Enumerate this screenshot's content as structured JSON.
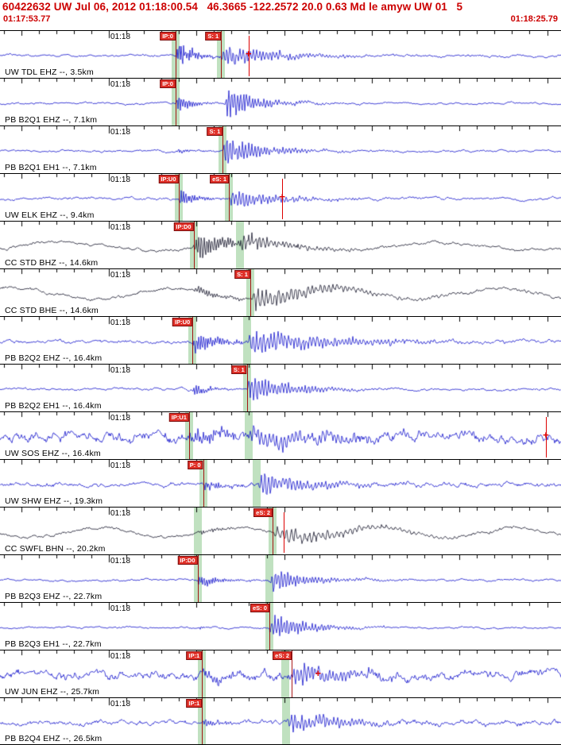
{
  "header": {
    "event_line": "60422632 UW Jul 06, 2012 01:18:00.54   46.3665 -122.2572 20.0 0.63 Md le amyw UW 01   5",
    "window_start": "01:17:53.77",
    "window_end": "01:18:25.79",
    "text_color": "#cc0000"
  },
  "axis": {
    "minute_label_x": 137,
    "tick_spacing": 22.06
  },
  "colors": {
    "trace_blue": "#1212cc",
    "trace_dark": "#14142a",
    "pick_flag_bg": "#e03028",
    "pick_band": "rgba(150,205,150,0.6)",
    "pick_line": "#a00000",
    "marker_red": "#dd0000",
    "tick_black": "#000000"
  },
  "traces": [
    {
      "station_label": "UW TDL EHZ --, 3.5km",
      "time_label": "01:18",
      "dark": false,
      "picks": [
        {
          "label": "IP:0",
          "frac": 0.313
        },
        {
          "label": "S: 1",
          "frac": 0.394
        }
      ],
      "bands": [
        0.313,
        0.394
      ],
      "markers": [
        {
          "frac": 0.443,
          "cross": true,
          "line": true
        }
      ],
      "wave": {
        "seed": 101,
        "noise": 1.0,
        "drift": 0,
        "wl": 200,
        "bursts": [
          {
            "at": 0.313,
            "amp": 14,
            "rise": 3,
            "decay": 22,
            "freq": 2.3
          },
          {
            "at": 0.394,
            "amp": 12,
            "rise": 3,
            "decay": 70,
            "freq": 1.5
          }
        ]
      }
    },
    {
      "station_label": "PB B2Q1 EHZ --, 7.1km",
      "time_label": "01:18",
      "dark": false,
      "picks": [
        {
          "label": "IP:0",
          "frac": 0.313
        }
      ],
      "bands": [
        0.313
      ],
      "markers": [],
      "wave": {
        "seed": 102,
        "noise": 0.8,
        "drift": 0,
        "wl": 200,
        "bursts": [
          {
            "at": 0.313,
            "amp": 10,
            "rise": 3,
            "decay": 16,
            "freq": 2.1
          },
          {
            "at": 0.4,
            "amp": 17,
            "rise": 4,
            "decay": 40,
            "freq": 1.7
          }
        ]
      }
    },
    {
      "station_label": "PB B2Q1 EH1 --, 7.1km",
      "time_label": "01:18",
      "dark": false,
      "picks": [
        {
          "label": "S: 1",
          "frac": 0.397
        }
      ],
      "bands": [
        0.397
      ],
      "markers": [],
      "wave": {
        "seed": 103,
        "noise": 0.8,
        "drift": 0,
        "wl": 200,
        "bursts": [
          {
            "at": 0.313,
            "amp": 3,
            "rise": 3,
            "decay": 14,
            "freq": 2.2
          },
          {
            "at": 0.397,
            "amp": 18,
            "rise": 4,
            "decay": 45,
            "freq": 1.6
          }
        ]
      }
    },
    {
      "station_label": "UW ELK EHZ --, 9.4km",
      "time_label": "01:18",
      "dark": false,
      "picks": [
        {
          "label": "IP:U0",
          "frac": 0.318
        },
        {
          "label": "eS: 1",
          "frac": 0.408
        }
      ],
      "bands": [
        0.318,
        0.408
      ],
      "markers": [
        {
          "frac": 0.503,
          "cross": true,
          "line": true
        }
      ],
      "wave": {
        "seed": 104,
        "noise": 1.0,
        "drift": 0,
        "wl": 200,
        "bursts": [
          {
            "at": 0.318,
            "amp": 12,
            "rise": 3,
            "decay": 18,
            "freq": 2.2
          },
          {
            "at": 0.408,
            "amp": 12,
            "rise": 4,
            "decay": 55,
            "freq": 1.5
          }
        ]
      }
    },
    {
      "station_label": "CC STD BHZ --, 14.6km",
      "time_label": "01:18",
      "dark": true,
      "picks": [
        {
          "label": "IP:D0",
          "frac": 0.345
        }
      ],
      "bands": [
        0.345,
        0.428
      ],
      "markers": [],
      "wave": {
        "seed": 105,
        "noise": 1.1,
        "drift": 5,
        "wl": 235,
        "bursts": [
          {
            "at": 0.345,
            "amp": 16,
            "rise": 4,
            "decay": 50,
            "freq": 1.9
          },
          {
            "at": 0.428,
            "amp": 9,
            "rise": 6,
            "decay": 60,
            "freq": 1.3
          }
        ]
      }
    },
    {
      "station_label": "CC STD BHE --, 14.6km",
      "time_label": "01:18",
      "dark": true,
      "picks": [
        {
          "label": "S: 1",
          "frac": 0.446
        }
      ],
      "bands": [
        0.446
      ],
      "markers": [],
      "wave": {
        "seed": 106,
        "noise": 1.2,
        "drift": 7,
        "wl": 205,
        "bursts": [
          {
            "at": 0.345,
            "amp": 5,
            "rise": 4,
            "decay": 35,
            "freq": 1.9
          },
          {
            "at": 0.446,
            "amp": 13,
            "rise": 7,
            "decay": 85,
            "freq": 1.2
          }
        ]
      }
    },
    {
      "station_label": "PB B2Q2 EHZ --, 16.4km",
      "time_label": "01:18",
      "dark": false,
      "picks": [
        {
          "label": "IP:U0",
          "frac": 0.343
        }
      ],
      "bands": [
        0.343,
        0.44
      ],
      "markers": [],
      "wave": {
        "seed": 107,
        "noise": 1.2,
        "drift": 0,
        "wl": 200,
        "bursts": [
          {
            "at": 0.343,
            "amp": 14,
            "rise": 3,
            "decay": 28,
            "freq": 2.1
          },
          {
            "at": 0.44,
            "amp": 14,
            "rise": 5,
            "decay": 110,
            "freq": 1.4
          }
        ]
      }
    },
    {
      "station_label": "PB B2Q2 EH1 --, 16.4km",
      "time_label": "01:18",
      "dark": false,
      "picks": [
        {
          "label": "S: 1",
          "frac": 0.44
        }
      ],
      "bands": [
        0.44
      ],
      "markers": [],
      "wave": {
        "seed": 108,
        "noise": 0.9,
        "drift": 0,
        "wl": 200,
        "bursts": [
          {
            "at": 0.343,
            "amp": 7,
            "rise": 3,
            "decay": 18,
            "freq": 2.1
          },
          {
            "at": 0.44,
            "amp": 16,
            "rise": 4,
            "decay": 55,
            "freq": 1.5
          }
        ]
      }
    },
    {
      "station_label": "UW SOS EHZ --, 16.4km",
      "time_label": "01:18",
      "dark": false,
      "picks": [
        {
          "label": "IP:U1",
          "frac": 0.337
        }
      ],
      "bands": [
        0.337,
        0.443
      ],
      "markers": [
        {
          "frac": 0.973,
          "cross": true,
          "line": true
        }
      ],
      "wave": {
        "seed": 109,
        "noise": 3.4,
        "drift": 0,
        "wl": 200,
        "bursts": [
          {
            "at": 0.337,
            "amp": 10,
            "rise": 4,
            "decay": 40,
            "freq": 1.9
          },
          {
            "at": 0.443,
            "amp": 11,
            "rise": 7,
            "decay": 120,
            "freq": 1.3
          }
        ]
      }
    },
    {
      "station_label": "UW SHW EHZ --, 19.3km",
      "time_label": "01:18",
      "dark": false,
      "picks": [
        {
          "label": "P: 0",
          "frac": 0.362
        }
      ],
      "bands": [
        0.362,
        0.458
      ],
      "markers": [],
      "wave": {
        "seed": 110,
        "noise": 1.6,
        "drift": 0,
        "wl": 200,
        "bursts": [
          {
            "at": 0.362,
            "amp": 5,
            "rise": 3,
            "decay": 22,
            "freq": 2.0
          },
          {
            "at": 0.458,
            "amp": 15,
            "rise": 8,
            "decay": 55,
            "freq": 1.4
          }
        ]
      }
    },
    {
      "station_label": "CC SWFL BHN --, 20.2km",
      "time_label": "01:18",
      "dark": true,
      "picks": [
        {
          "label": "eS: 2",
          "frac": 0.486
        }
      ],
      "bands": [
        0.352,
        0.486
      ],
      "markers": [
        {
          "frac": 0.505,
          "line": true
        }
      ],
      "wave": {
        "seed": 111,
        "noise": 1.0,
        "drift": 6,
        "wl": 175,
        "bursts": [
          {
            "at": 0.352,
            "amp": 3,
            "rise": 4,
            "decay": 28,
            "freq": 1.8
          },
          {
            "at": 0.486,
            "amp": 10,
            "rise": 7,
            "decay": 95,
            "freq": 1.1
          }
        ]
      }
    },
    {
      "station_label": "PB B2Q3 EHZ --, 22.7km",
      "time_label": "01:18",
      "dark": false,
      "picks": [
        {
          "label": "IP:D0",
          "frac": 0.352
        }
      ],
      "bands": [
        0.352,
        0.48
      ],
      "markers": [],
      "wave": {
        "seed": 112,
        "noise": 0.8,
        "drift": 0,
        "wl": 200,
        "bursts": [
          {
            "at": 0.352,
            "amp": 9,
            "rise": 3,
            "decay": 22,
            "freq": 2.2
          },
          {
            "at": 0.48,
            "amp": 13,
            "rise": 4,
            "decay": 50,
            "freq": 1.6
          }
        ]
      }
    },
    {
      "station_label": "PB B2Q3 EH1 --, 22.7km",
      "time_label": "01:18",
      "dark": false,
      "picks": [
        {
          "label": "eS: 0",
          "frac": 0.48
        }
      ],
      "bands": [
        0.48
      ],
      "markers": [],
      "wave": {
        "seed": 113,
        "noise": 0.7,
        "drift": 0,
        "wl": 200,
        "bursts": [
          {
            "at": 0.352,
            "amp": 2,
            "rise": 3,
            "decay": 14,
            "freq": 2.2
          },
          {
            "at": 0.48,
            "amp": 15,
            "rise": 4,
            "decay": 45,
            "freq": 1.6
          }
        ]
      }
    },
    {
      "station_label": "UW JUN EHZ --, 25.7km",
      "time_label": "01:18",
      "dark": false,
      "picks": [
        {
          "label": "IP:1",
          "frac": 0.36
        },
        {
          "label": "eS: 2",
          "frac": 0.52
        }
      ],
      "bands": [
        0.36,
        0.508
      ],
      "markers": [
        {
          "frac": 0.567,
          "cross": true
        }
      ],
      "wave": {
        "seed": 114,
        "noise": 3.0,
        "drift": 0,
        "wl": 200,
        "bursts": [
          {
            "at": 0.36,
            "amp": 7,
            "rise": 4,
            "decay": 35,
            "freq": 1.9
          },
          {
            "at": 0.52,
            "amp": 13,
            "rise": 5,
            "decay": 75,
            "freq": 1.4
          }
        ]
      }
    },
    {
      "station_label": "PB B2Q4 EHZ --, 26.5km",
      "time_label": "01:18",
      "dark": false,
      "picks": [
        {
          "label": "IP:1",
          "frac": 0.36
        }
      ],
      "bands": [
        0.36,
        0.51
      ],
      "markers": [],
      "wave": {
        "seed": 115,
        "noise": 1.8,
        "drift": 0,
        "wl": 200,
        "bursts": [
          {
            "at": 0.36,
            "amp": 4,
            "rise": 3,
            "decay": 22,
            "freq": 2.0
          },
          {
            "at": 0.51,
            "amp": 13,
            "rise": 7,
            "decay": 65,
            "freq": 1.4
          }
        ]
      }
    }
  ]
}
